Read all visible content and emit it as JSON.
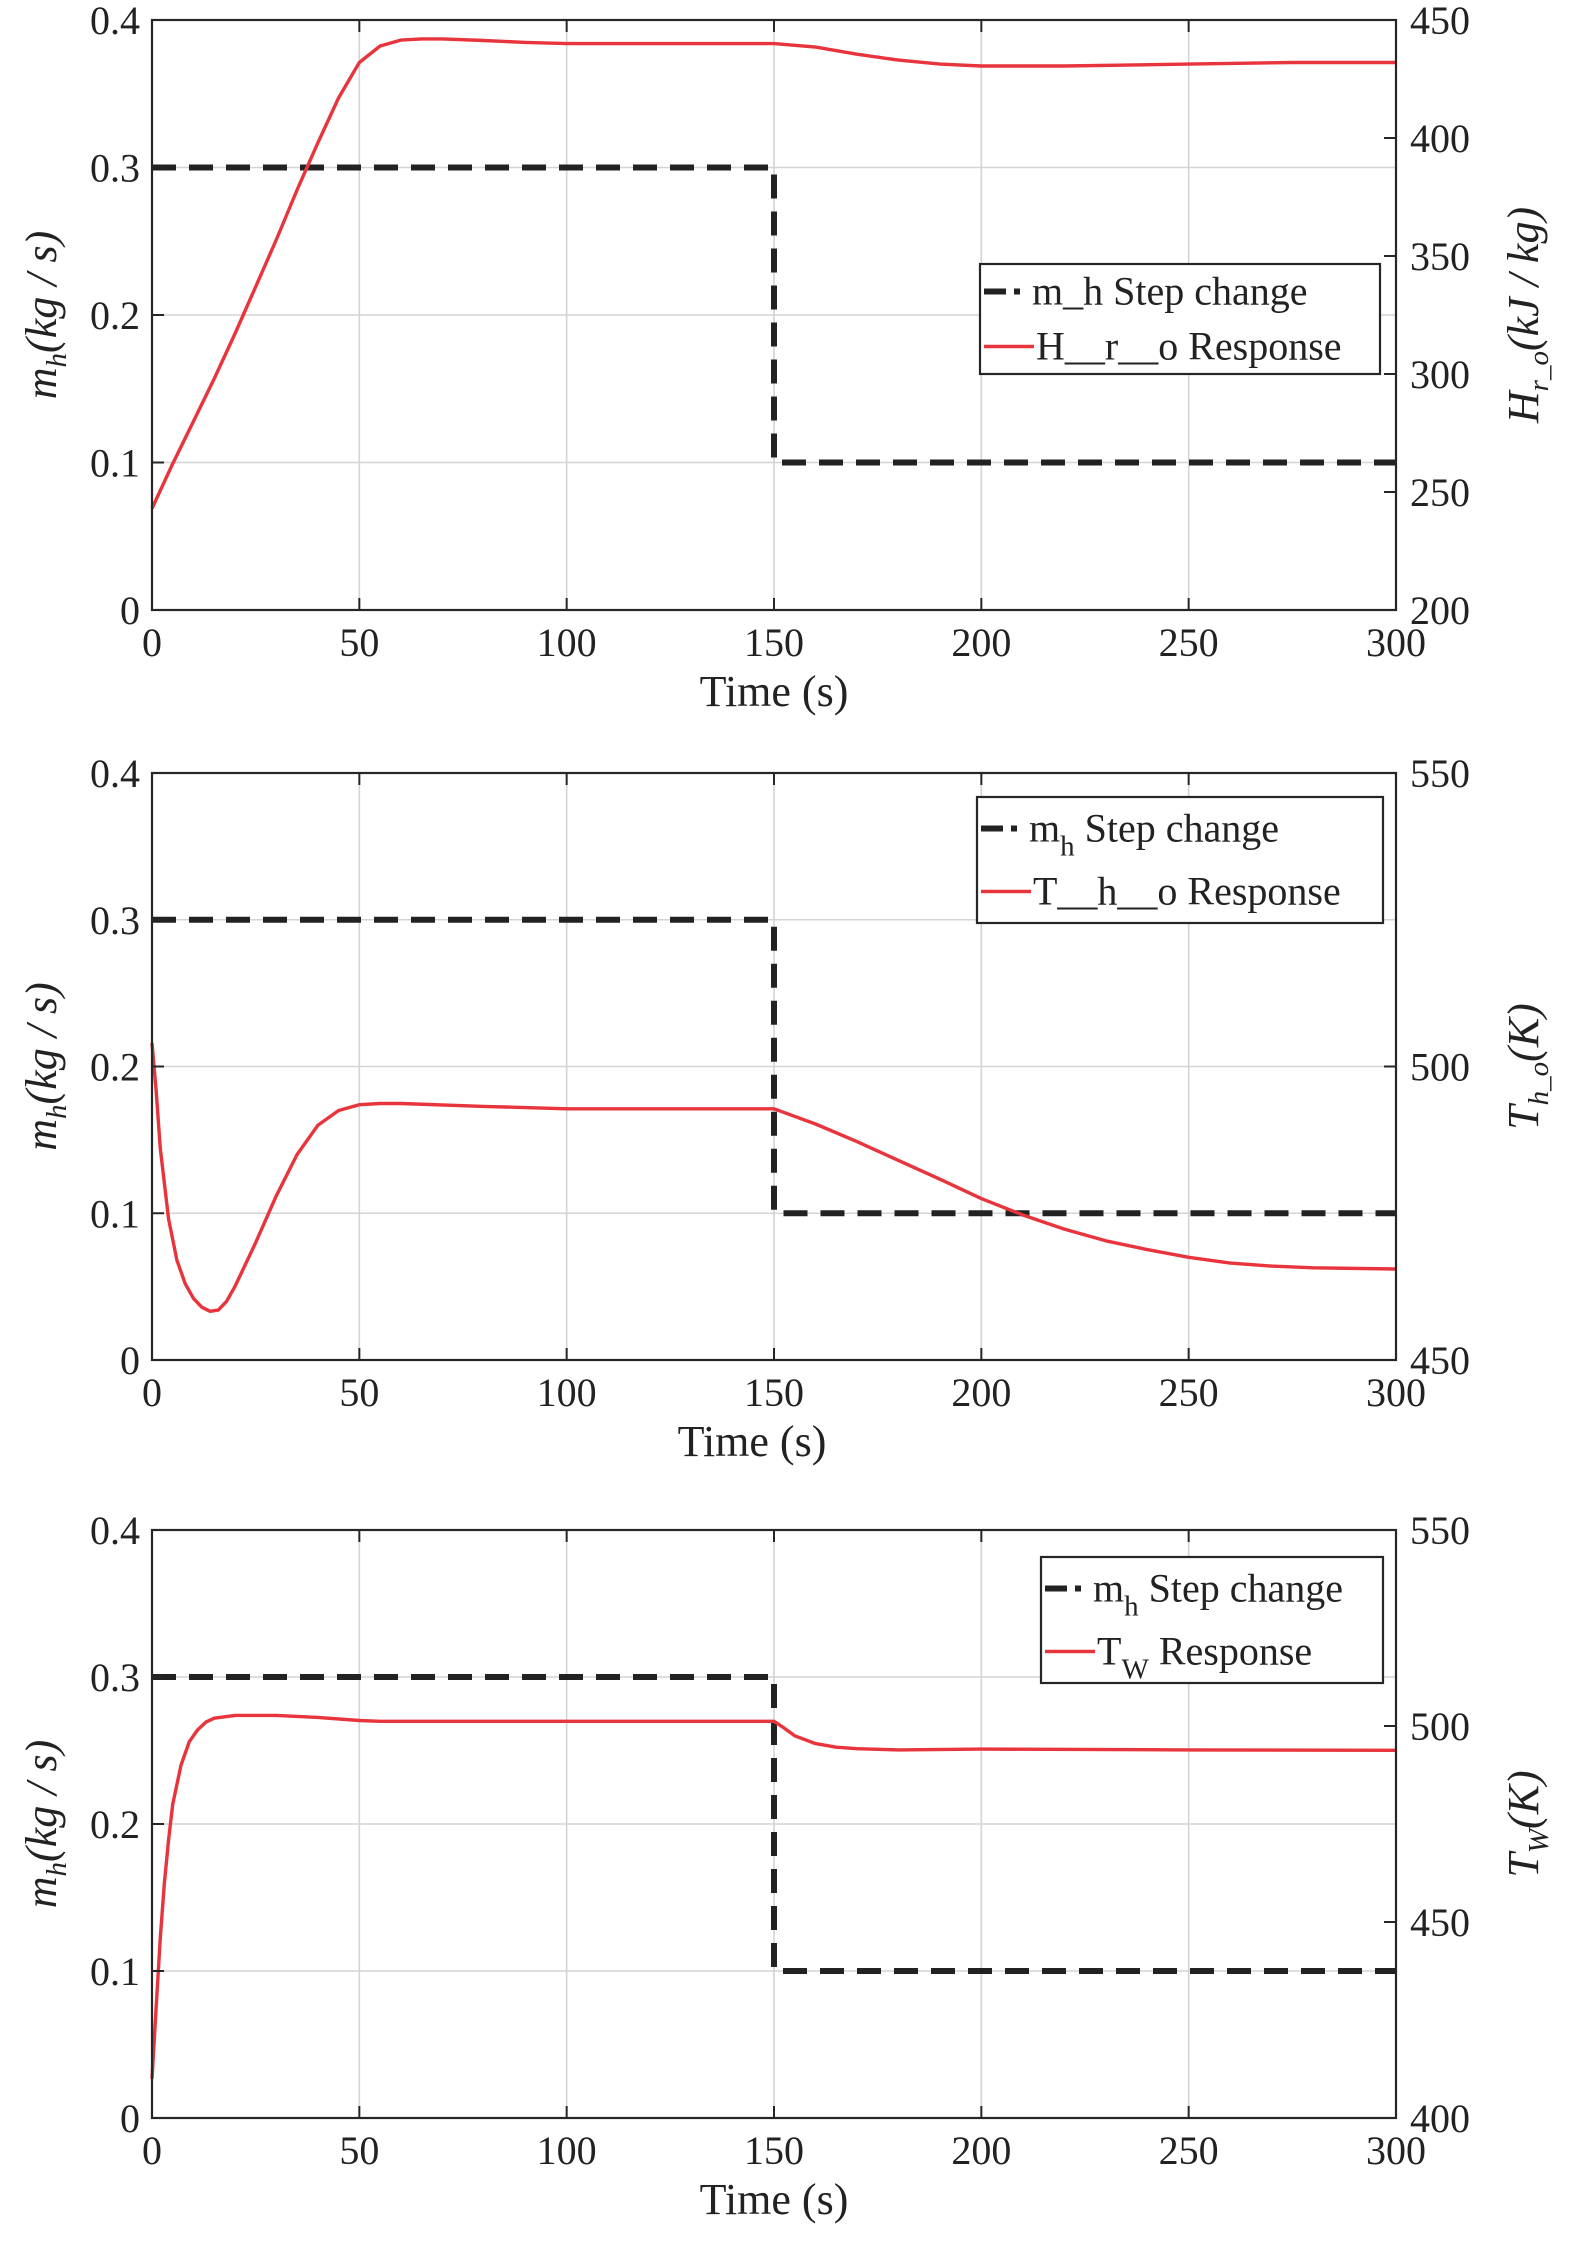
{
  "chart_data": [
    {
      "type": "line",
      "panel": "top",
      "xlabel": "Time (s)",
      "xlim": [
        0,
        300
      ],
      "xticks": [
        0,
        50,
        100,
        150,
        200,
        250,
        300
      ],
      "yleft": {
        "label": "m",
        "label_sub": "h",
        "label_unit": "(kg / s)",
        "lim": [
          0,
          0.4
        ],
        "ticks": [
          "0",
          "0.1",
          "0.2",
          "0.3",
          "0.4"
        ]
      },
      "yright": {
        "label": "H",
        "label_sub": "r_o",
        "label_unit": "(kJ / kg)",
        "lim": [
          200,
          450
        ],
        "ticks": [
          "200",
          "250",
          "300",
          "350",
          "400",
          "450"
        ]
      },
      "legend": {
        "placement": "right",
        "entries": [
          {
            "text": "m_h Step change",
            "style": "dashed",
            "color": "#222222"
          },
          {
            "text": "H__r__o Response",
            "style": "solid",
            "color": "#e8343c"
          }
        ]
      },
      "series": [
        {
          "name": "m_h Step change",
          "axis": "left",
          "color": "#222222",
          "style": "dashed",
          "x": [
            0,
            150,
            150,
            300
          ],
          "y": [
            0.3,
            0.3,
            0.1,
            0.1
          ]
        },
        {
          "name": "H_r_o Response",
          "axis": "right",
          "color": "#e8343c",
          "style": "solid",
          "x": [
            0,
            5,
            10,
            15,
            20,
            25,
            30,
            35,
            40,
            45,
            50,
            55,
            60,
            65,
            70,
            80,
            90,
            100,
            110,
            120,
            130,
            140,
            150,
            160,
            170,
            180,
            190,
            200,
            220,
            250,
            275,
            300
          ],
          "y": [
            243,
            262,
            280,
            298,
            317,
            337,
            357,
            378,
            398,
            417,
            432,
            439,
            441.5,
            442,
            442,
            441.3,
            440.5,
            440,
            440,
            440,
            440,
            440,
            440,
            438.5,
            435.5,
            433,
            431.3,
            430.5,
            430.5,
            431.3,
            432,
            432
          ]
        }
      ]
    },
    {
      "type": "line",
      "panel": "middle",
      "xlabel": "Time (s)",
      "xlim": [
        0,
        300
      ],
      "xticks": [
        0,
        50,
        100,
        150,
        200,
        250,
        300
      ],
      "yleft": {
        "label": "m",
        "label_sub": "h",
        "label_unit": "(kg / s)",
        "lim": [
          0,
          0.4
        ],
        "ticks": [
          "0",
          "0.1",
          "0.2",
          "0.3",
          "0.4"
        ]
      },
      "yright": {
        "label": "T",
        "label_sub": "h_o",
        "label_unit": "(K)",
        "lim": [
          450,
          550
        ],
        "ticks": [
          "450",
          "500",
          "550"
        ]
      },
      "legend": {
        "placement": "top-right",
        "entries": [
          {
            "text": "m",
            "sub": "h",
            "rest": " Step change",
            "style": "dashed",
            "color": "#222222"
          },
          {
            "text": "T__h__o Response",
            "style": "solid",
            "color": "#e8343c"
          }
        ]
      },
      "series": [
        {
          "name": "m_h Step change",
          "axis": "left",
          "color": "#222222",
          "style": "dashed",
          "x": [
            0,
            150,
            150,
            300
          ],
          "y": [
            0.3,
            0.3,
            0.1,
            0.1
          ]
        },
        {
          "name": "T_h_o Response",
          "axis": "right",
          "color": "#e8343c",
          "style": "solid",
          "x": [
            0,
            1,
            2,
            4,
            6,
            8,
            10,
            12,
            14,
            16,
            18,
            20,
            25,
            30,
            35,
            40,
            45,
            50,
            55,
            60,
            80,
            100,
            150,
            160,
            170,
            180,
            190,
            200,
            210,
            220,
            230,
            240,
            250,
            260,
            270,
            280,
            300
          ],
          "y": [
            504,
            496,
            486,
            474,
            467,
            463,
            460.5,
            459,
            458.3,
            458.5,
            460,
            462.5,
            470,
            478,
            485,
            490,
            492.5,
            493.5,
            493.7,
            493.7,
            493.2,
            492.8,
            492.8,
            490.2,
            487.2,
            484,
            480.8,
            477.5,
            474.7,
            472.3,
            470.3,
            468.8,
            467.5,
            466.5,
            466,
            465.7,
            465.5
          ]
        }
      ]
    },
    {
      "type": "line",
      "panel": "bottom",
      "xlabel": "Time (s)",
      "xlim": [
        0,
        300
      ],
      "xticks": [
        0,
        50,
        100,
        150,
        200,
        250,
        300
      ],
      "yleft": {
        "label": "m",
        "label_sub": "h",
        "label_unit": "(kg / s)",
        "lim": [
          0,
          0.4
        ],
        "ticks": [
          "0",
          "0.1",
          "0.2",
          "0.3",
          "0.4"
        ]
      },
      "yright": {
        "label": "T",
        "label_sub": "W",
        "label_unit": "(K)",
        "lim": [
          400,
          550
        ],
        "ticks": [
          "400",
          "450",
          "500",
          "550"
        ]
      },
      "legend": {
        "placement": "top-right",
        "entries": [
          {
            "text": "m",
            "sub": "h",
            "rest": " Step change",
            "style": "dashed",
            "color": "#222222"
          },
          {
            "text": "T",
            "sub": "W",
            "rest": " Response",
            "style": "solid",
            "color": "#e8343c"
          }
        ]
      },
      "series": [
        {
          "name": "m_h Step change",
          "axis": "left",
          "color": "#222222",
          "style": "dashed",
          "x": [
            0,
            150,
            150,
            300
          ],
          "y": [
            0.3,
            0.3,
            0.1,
            0.1
          ]
        },
        {
          "name": "T_W Response",
          "axis": "right",
          "color": "#e8343c",
          "style": "solid",
          "x": [
            0,
            1,
            2,
            3,
            4,
            5,
            7,
            9,
            11,
            13,
            15,
            20,
            30,
            40,
            50,
            55,
            60,
            100,
            150,
            152,
            155,
            160,
            165,
            170,
            180,
            200,
            250,
            300
          ],
          "y": [
            410,
            428,
            446,
            460,
            471,
            480,
            490,
            496,
            499,
            501,
            502,
            502.7,
            502.7,
            502.2,
            501.4,
            501.2,
            501.2,
            501.2,
            501.2,
            499.8,
            497.5,
            495.5,
            494.6,
            494.2,
            493.9,
            494.1,
            493.9,
            493.8
          ]
        }
      ]
    }
  ]
}
